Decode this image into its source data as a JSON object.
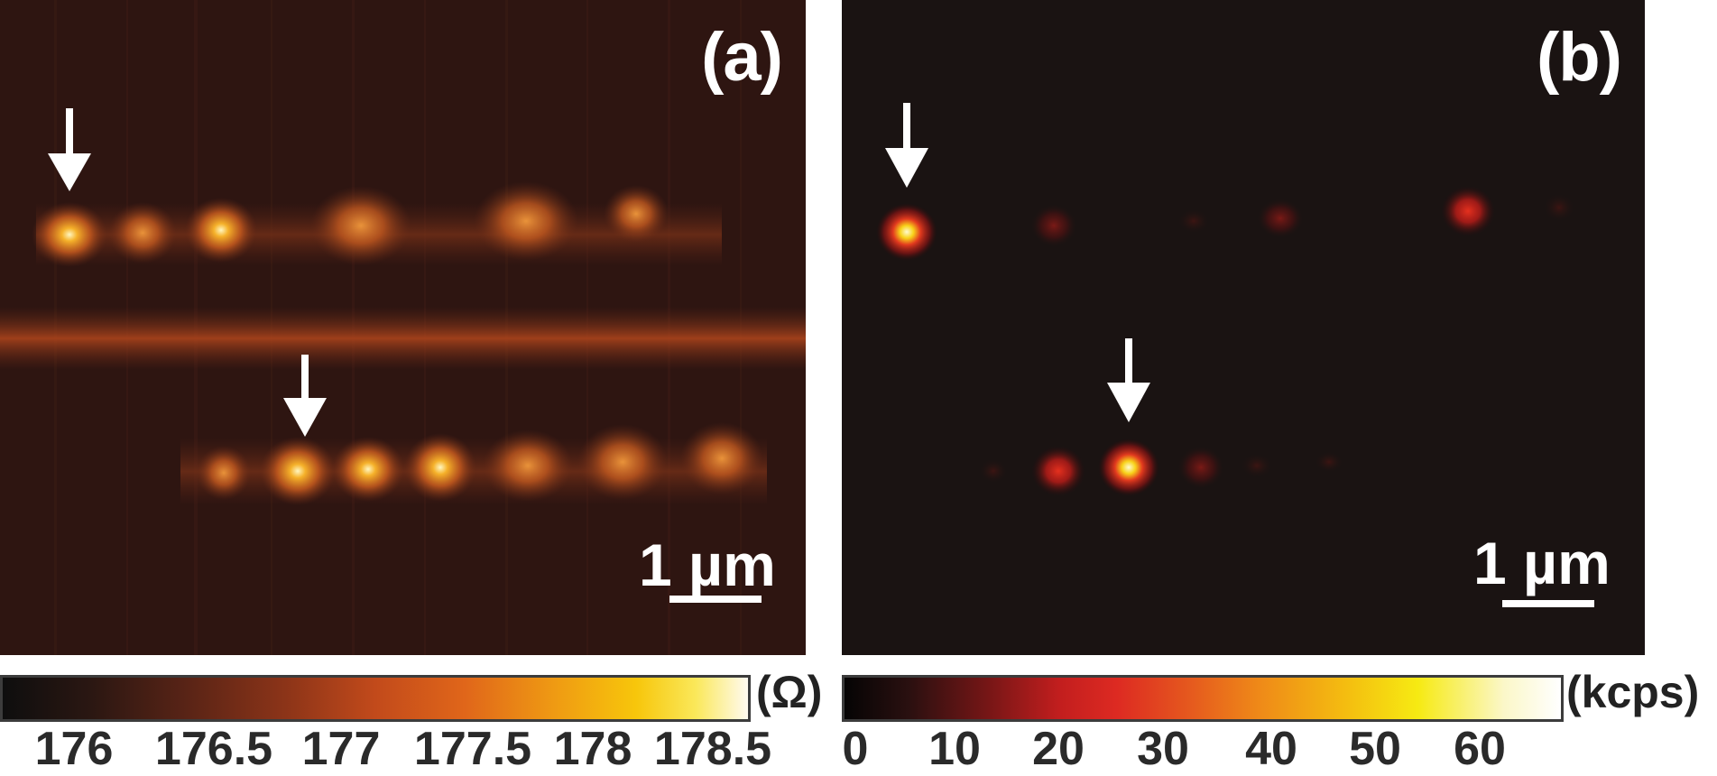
{
  "panels": [
    {
      "label": "(a)",
      "scale_bar_label": "1 µm",
      "colorbar": {
        "unit": "(Ω)",
        "tick_labels": [
          "176",
          "176.5",
          "177",
          "177.5",
          "178",
          "178.5"
        ],
        "tick_values": [
          176,
          176.5,
          177,
          177.5,
          178,
          178.5
        ],
        "range": [
          175.7,
          178.7
        ]
      },
      "arrow_count": 2
    },
    {
      "label": "(b)",
      "scale_bar_label": "1 µm",
      "colorbar": {
        "unit": "(kcps)",
        "tick_labels": [
          "0",
          "10",
          "20",
          "30",
          "40",
          "50",
          "60"
        ],
        "tick_values": [
          0,
          10,
          20,
          30,
          40,
          50,
          60
        ],
        "range": [
          0,
          65
        ]
      },
      "arrow_count": 2
    }
  ],
  "colors": {
    "panel_a_background": "#2e1511",
    "panel_b_background": "#1a1312",
    "arrow": "#ffffff",
    "text_light": "#ffffff",
    "text_dark": "#2a2a2a"
  }
}
